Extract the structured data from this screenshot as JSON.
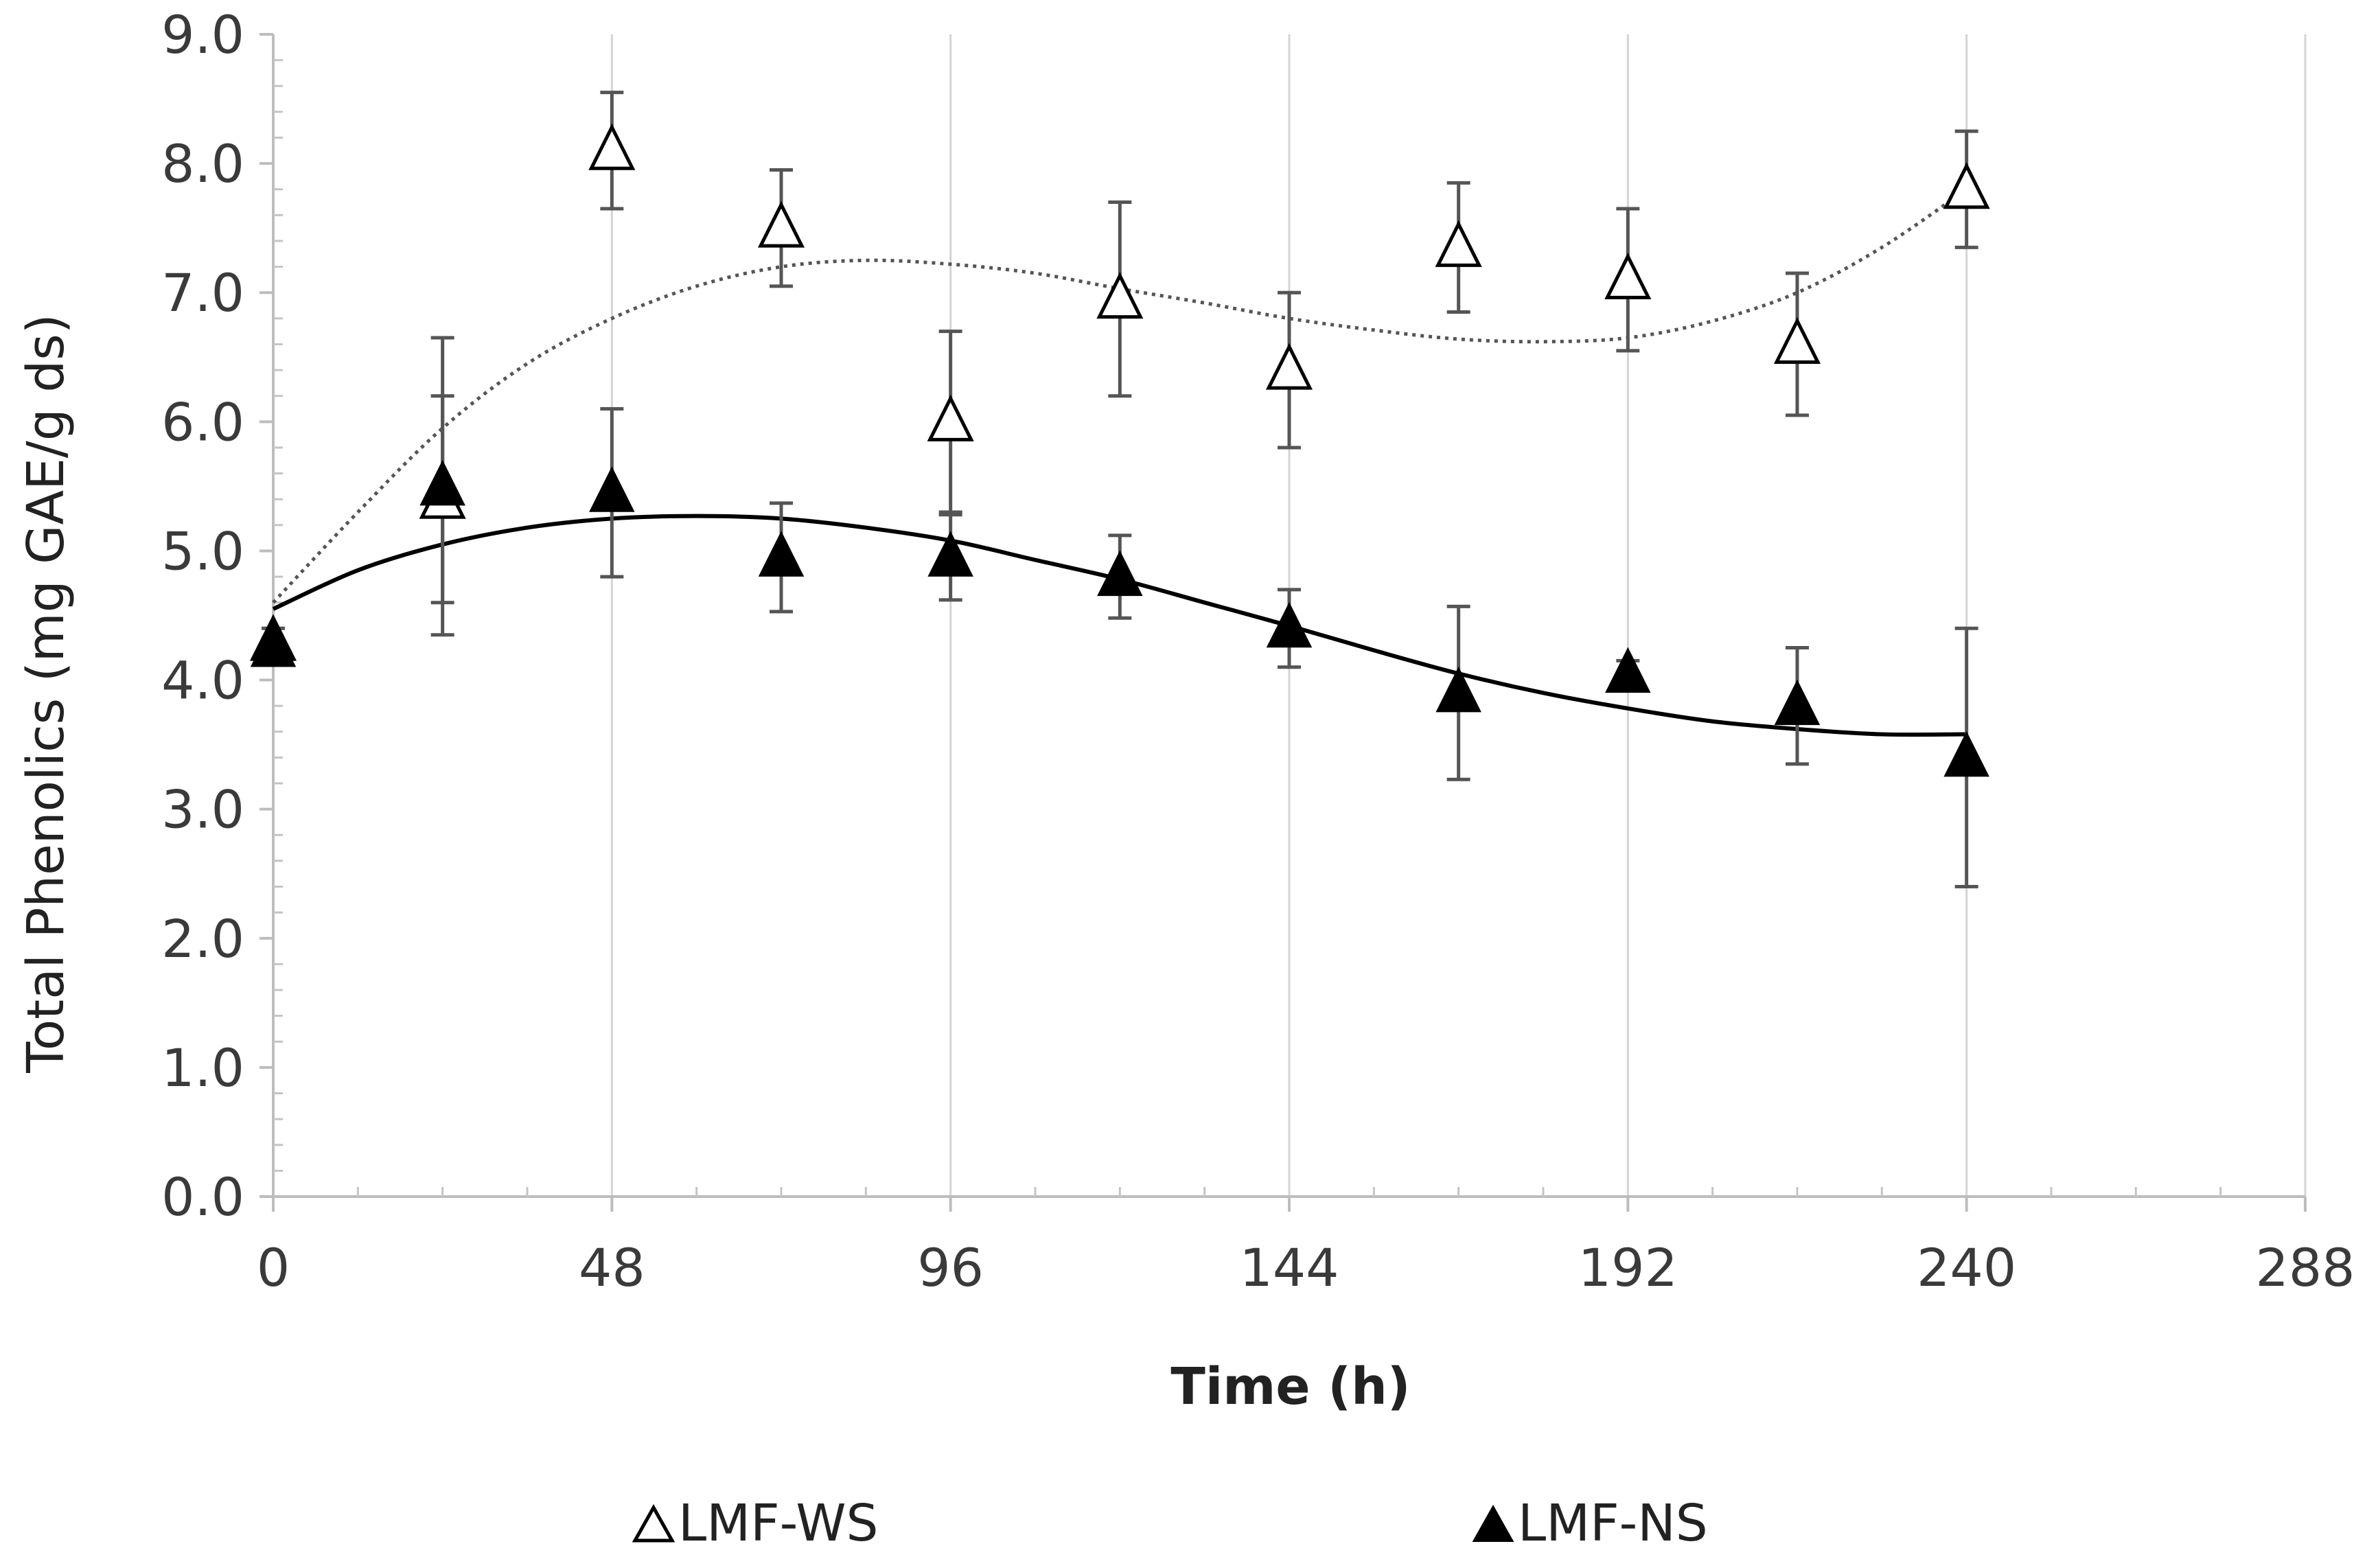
{
  "chart_data": {
    "type": "scatter",
    "title": "",
    "xlabel": "Time (h)",
    "ylabel": "Total Phenolics (mg GAE/g ds)",
    "xlim": [
      0,
      288
    ],
    "ylim": [
      0,
      9
    ],
    "xticks": [
      0,
      48,
      96,
      144,
      192,
      240,
      288
    ],
    "xtick_labels": [
      "0",
      "48",
      "96",
      "144",
      "192",
      "240",
      "288"
    ],
    "yticks": [
      0,
      1,
      2,
      3,
      4,
      5,
      6,
      7,
      8,
      9
    ],
    "ytick_labels": [
      "0.0",
      "1.0",
      "2.0",
      "3.0",
      "4.0",
      "5.0",
      "6.0",
      "7.0",
      "8.0",
      "9.0"
    ],
    "grid": "vertical",
    "legend_position": "bottom",
    "series": [
      {
        "name": "LMF-WS",
        "legend_label": "LMF-WS",
        "marker": "open-triangle",
        "trendline": "dotted",
        "x": [
          0,
          24,
          48,
          72,
          96,
          120,
          144,
          168,
          192,
          216,
          240
        ],
        "y": [
          4.3,
          5.4,
          8.1,
          7.5,
          6.0,
          6.95,
          6.4,
          7.35,
          7.1,
          6.6,
          7.8
        ],
        "err": [
          0.1,
          0.8,
          0.45,
          0.45,
          0.7,
          0.75,
          0.6,
          0.5,
          0.55,
          0.55,
          0.45
        ],
        "trend_x": [
          0,
          12,
          24,
          36,
          48,
          60,
          72,
          84,
          96,
          108,
          120,
          132,
          144,
          156,
          168,
          180,
          192,
          204,
          216,
          228,
          240
        ],
        "trend_y": [
          4.6,
          5.3,
          5.95,
          6.45,
          6.8,
          7.05,
          7.2,
          7.25,
          7.22,
          7.15,
          7.03,
          6.92,
          6.8,
          6.71,
          6.64,
          6.62,
          6.65,
          6.78,
          7.0,
          7.35,
          7.8
        ]
      },
      {
        "name": "LMF-NS",
        "legend_label": "LMF-NS",
        "marker": "filled-triangle",
        "trendline": "solid",
        "x": [
          0,
          24,
          48,
          72,
          96,
          120,
          144,
          168,
          192,
          216,
          240
        ],
        "y": [
          4.25,
          5.5,
          5.45,
          4.95,
          4.95,
          4.8,
          4.4,
          3.9,
          4.05,
          3.8,
          3.4
        ],
        "err": [
          0.05,
          1.15,
          0.65,
          0.42,
          0.33,
          0.32,
          0.3,
          0.67,
          0.1,
          0.45,
          1.0
        ],
        "trend_x": [
          0,
          12,
          24,
          36,
          48,
          60,
          72,
          84,
          96,
          108,
          120,
          132,
          144,
          156,
          168,
          180,
          192,
          204,
          216,
          228,
          240
        ],
        "trend_y": [
          4.55,
          4.85,
          5.05,
          5.18,
          5.25,
          5.27,
          5.25,
          5.18,
          5.08,
          4.93,
          4.78,
          4.6,
          4.42,
          4.23,
          4.05,
          3.9,
          3.78,
          3.68,
          3.62,
          3.58,
          3.58
        ]
      }
    ]
  }
}
